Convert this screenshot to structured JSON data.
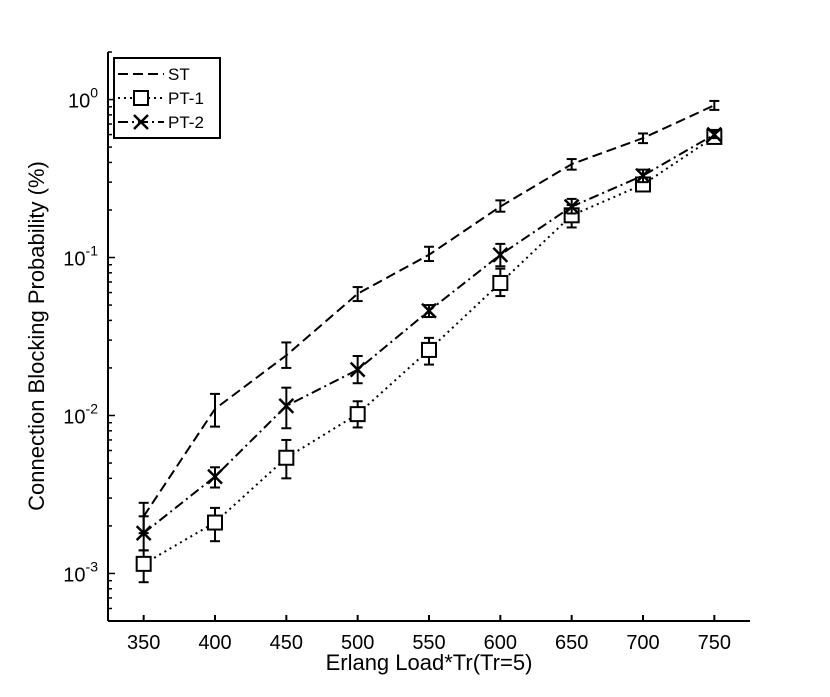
{
  "chart_data": {
    "type": "line",
    "xlabel": "Erlang Load*Tr(Tr=5)",
    "ylabel": "Connection Blocking Probability (%)",
    "y_scale": "log",
    "xlim": [
      325,
      775
    ],
    "ylim": [
      0.0005,
      2.0
    ],
    "x": [
      350,
      400,
      450,
      500,
      550,
      600,
      650,
      700,
      750
    ],
    "x_ticks": [
      "350",
      "400",
      "450",
      "500",
      "550",
      "600",
      "650",
      "700",
      "750"
    ],
    "y_ticks": [
      {
        "value": 0.001,
        "base": "10",
        "exp": "-3"
      },
      {
        "value": 0.01,
        "base": "10",
        "exp": "-2"
      },
      {
        "value": 0.1,
        "base": "10",
        "exp": "-1"
      },
      {
        "value": 1.0,
        "base": "10",
        "exp": "0"
      }
    ],
    "legend_position": "top-left",
    "grid": false,
    "series": [
      {
        "name": "ST",
        "dash": "dashed",
        "marker": "none",
        "values": [
          0.0023,
          0.011,
          0.024,
          0.059,
          0.104,
          0.21,
          0.39,
          0.57,
          0.92
        ],
        "err_low": [
          0.0018,
          0.0085,
          0.02,
          0.053,
          0.095,
          0.195,
          0.36,
          0.53,
          0.86
        ],
        "err_high": [
          0.0028,
          0.0137,
          0.029,
          0.065,
          0.117,
          0.23,
          0.42,
          0.61,
          0.98
        ]
      },
      {
        "name": "PT-1",
        "dash": "dotted",
        "marker": "square",
        "values": [
          0.00115,
          0.0021,
          0.0054,
          0.0102,
          0.026,
          0.069,
          0.185,
          0.29,
          0.58
        ],
        "err_low": [
          0.00088,
          0.0016,
          0.004,
          0.0084,
          0.021,
          0.057,
          0.155,
          0.27,
          0.55
        ],
        "err_high": [
          0.0014,
          0.0026,
          0.007,
          0.0123,
          0.031,
          0.085,
          0.215,
          0.31,
          0.61
        ]
      },
      {
        "name": "PT-2",
        "dash": "dashdot",
        "marker": "x",
        "values": [
          0.0018,
          0.0041,
          0.0115,
          0.0195,
          0.046,
          0.104,
          0.21,
          0.33,
          0.6
        ],
        "err_low": [
          0.0014,
          0.0035,
          0.0083,
          0.016,
          0.042,
          0.088,
          0.19,
          0.3,
          0.57
        ],
        "err_high": [
          0.0023,
          0.0047,
          0.015,
          0.0238,
          0.05,
          0.122,
          0.235,
          0.36,
          0.63
        ]
      }
    ]
  }
}
